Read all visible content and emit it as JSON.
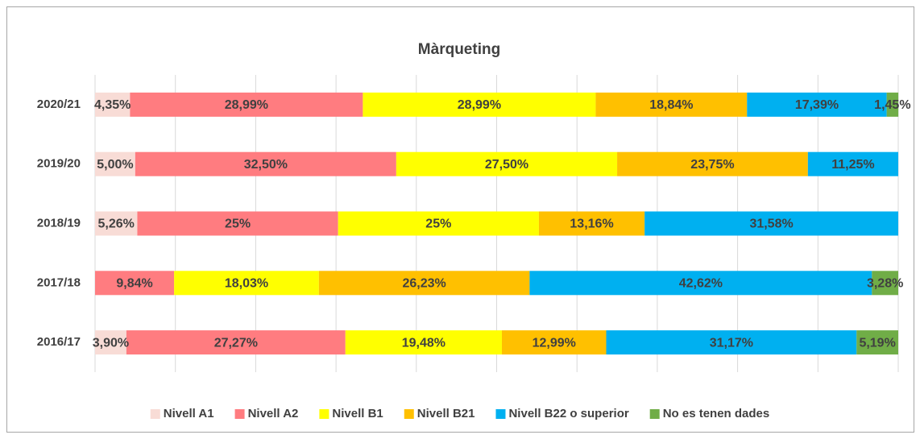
{
  "chart_data": {
    "type": "stacked-bar-horizontal",
    "title": "Màrqueting",
    "categories": [
      "2020/21",
      "2019/20",
      "2018/19",
      "2017/18",
      "2016/17"
    ],
    "xlim": [
      0,
      100
    ],
    "xticks": [
      0,
      10,
      20,
      30,
      40,
      50,
      60,
      70,
      80,
      90,
      100
    ],
    "grid": true,
    "legend": "bottom",
    "series": [
      {
        "name": "Nivell A1",
        "color": "#f8dcd6",
        "values": [
          4.35,
          5.0,
          5.26,
          null,
          3.9
        ],
        "value_labels": [
          "4,35%",
          "5,00%",
          "5,26%",
          null,
          "3,90%"
        ]
      },
      {
        "name": "Nivell A2",
        "color": "#ff7c80",
        "values": [
          28.99,
          32.5,
          25,
          9.84,
          27.27
        ],
        "value_labels": [
          "28,99%",
          "32,50%",
          "25%",
          "9,84%",
          "27,27%"
        ]
      },
      {
        "name": "Nivell B1",
        "color": "#ffff00",
        "values": [
          28.99,
          27.5,
          25,
          18.03,
          19.48
        ],
        "value_labels": [
          "28,99%",
          "27,50%",
          "25%",
          "18,03%",
          "19,48%"
        ]
      },
      {
        "name": "Nivell B21",
        "color": "#ffc000",
        "values": [
          18.84,
          23.75,
          13.16,
          26.23,
          12.99
        ],
        "value_labels": [
          "18,84%",
          "23,75%",
          "13,16%",
          "26,23%",
          "12,99%"
        ]
      },
      {
        "name": "Nivell B22 o superior",
        "color": "#00b0f0",
        "values": [
          17.39,
          11.25,
          31.58,
          42.62,
          31.17
        ],
        "value_labels": [
          "17,39%",
          "11,25%",
          "31,58%",
          "42,62%",
          "31,17%"
        ]
      },
      {
        "name": "No es tenen dades",
        "color": "#70ad47",
        "values": [
          1.45,
          null,
          null,
          3.28,
          5.19
        ],
        "value_labels": [
          "1,45%",
          null,
          null,
          "3,28%",
          "5,19%"
        ]
      }
    ]
  }
}
